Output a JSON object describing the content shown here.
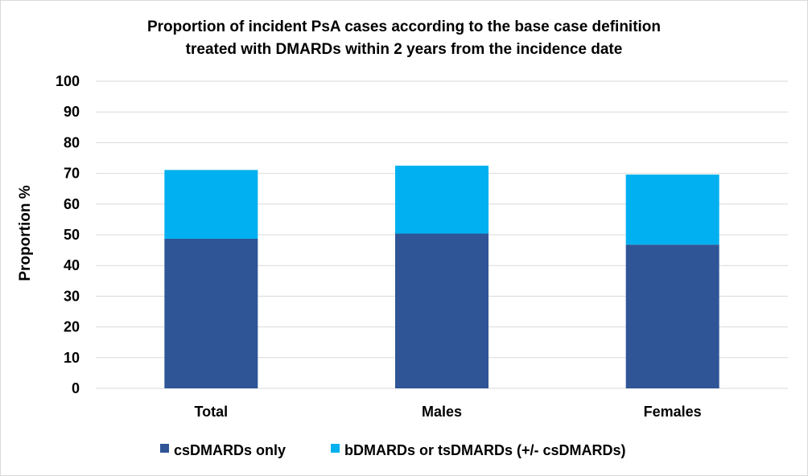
{
  "chart_data": {
    "type": "bar",
    "stacked": true,
    "title_lines": [
      "Proportion of incident PsA cases according to the base case definition",
      "treated with DMARDs within 2 years from the incidence date"
    ],
    "xlabel": "",
    "ylabel": "Proportion %",
    "ylim": [
      0,
      100
    ],
    "yticks": [
      0,
      10,
      20,
      30,
      40,
      50,
      60,
      70,
      80,
      90,
      100
    ],
    "categories": [
      "Total",
      "Males",
      "Females"
    ],
    "series": [
      {
        "name": "csDMARDs only",
        "color": "#2f5597",
        "values": [
          48.7,
          50.4,
          46.8
        ]
      },
      {
        "name": "bDMARDs or tsDMARDs (+/- csDMARDs)",
        "color": "#00b0f0",
        "values": [
          22.4,
          22.1,
          22.8
        ]
      }
    ],
    "grid": true,
    "legend_position": "bottom"
  }
}
